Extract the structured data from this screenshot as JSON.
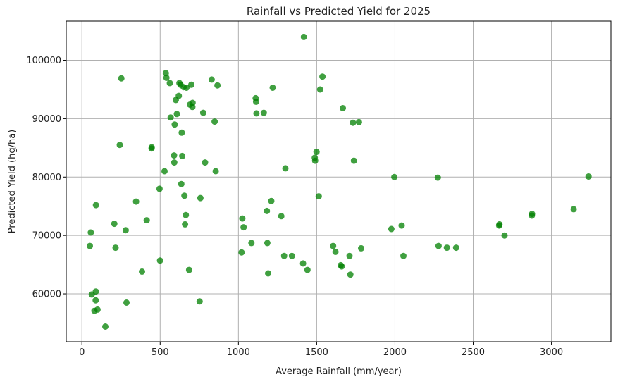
{
  "chart_data": {
    "type": "scatter",
    "title": "Rainfall vs Predicted Yield for 2025",
    "xlabel": "Average Rainfall (mm/year)",
    "ylabel": "Predicted Yield (hg/ha)",
    "xlim": [
      -100,
      3380
    ],
    "ylim": [
      51800,
      106700
    ],
    "xticks": [
      0,
      500,
      1000,
      1500,
      2000,
      2500,
      3000
    ],
    "yticks": [
      60000,
      70000,
      80000,
      90000,
      100000
    ],
    "grid": true,
    "marker_color": "#008000",
    "series": [
      {
        "points": [
          [
            51,
            68200
          ],
          [
            57,
            70500
          ],
          [
            63,
            59900
          ],
          [
            80,
            57100
          ],
          [
            88,
            58900
          ],
          [
            89,
            60400
          ],
          [
            90,
            75200
          ],
          [
            100,
            57300
          ],
          [
            150,
            54400
          ],
          [
            207,
            72000
          ],
          [
            215,
            67900
          ],
          [
            242,
            85500
          ],
          [
            252,
            96900
          ],
          [
            280,
            70900
          ],
          [
            285,
            58500
          ],
          [
            346,
            75800
          ],
          [
            384,
            63800
          ],
          [
            414,
            72600
          ],
          [
            445,
            84900
          ],
          [
            446,
            85100
          ],
          [
            496,
            78000
          ],
          [
            499,
            65700
          ],
          [
            528,
            81000
          ],
          [
            536,
            97800
          ],
          [
            540,
            97000
          ],
          [
            562,
            96100
          ],
          [
            567,
            90200
          ],
          [
            589,
            83700
          ],
          [
            590,
            82500
          ],
          [
            593,
            89000
          ],
          [
            600,
            93200
          ],
          [
            607,
            90800
          ],
          [
            619,
            93900
          ],
          [
            623,
            96100
          ],
          [
            630,
            95800
          ],
          [
            635,
            78800
          ],
          [
            638,
            87600
          ],
          [
            641,
            83600
          ],
          [
            650,
            95400
          ],
          [
            655,
            76800
          ],
          [
            659,
            71900
          ],
          [
            664,
            73500
          ],
          [
            668,
            95300
          ],
          [
            685,
            64100
          ],
          [
            690,
            92400
          ],
          [
            699,
            95800
          ],
          [
            706,
            92000
          ],
          [
            707,
            92700
          ],
          [
            752,
            58700
          ],
          [
            757,
            76400
          ],
          [
            775,
            91000
          ],
          [
            787,
            82500
          ],
          [
            829,
            96700
          ],
          [
            848,
            89500
          ],
          [
            855,
            81000
          ],
          [
            866,
            95700
          ],
          [
            1020,
            67100
          ],
          [
            1025,
            72900
          ],
          [
            1033,
            71400
          ],
          [
            1083,
            68700
          ],
          [
            1110,
            93500
          ],
          [
            1113,
            92900
          ],
          [
            1115,
            90900
          ],
          [
            1162,
            91000
          ],
          [
            1182,
            74200
          ],
          [
            1185,
            68700
          ],
          [
            1190,
            63500
          ],
          [
            1210,
            75900
          ],
          [
            1219,
            95300
          ],
          [
            1274,
            73300
          ],
          [
            1292,
            66500
          ],
          [
            1300,
            81500
          ],
          [
            1342,
            66500
          ],
          [
            1413,
            65200
          ],
          [
            1418,
            104000
          ],
          [
            1441,
            64100
          ],
          [
            1488,
            83300
          ],
          [
            1490,
            82800
          ],
          [
            1499,
            84300
          ],
          [
            1513,
            76700
          ],
          [
            1522,
            95000
          ],
          [
            1537,
            97200
          ],
          [
            1605,
            68200
          ],
          [
            1620,
            67200
          ],
          [
            1654,
            64900
          ],
          [
            1660,
            64700
          ],
          [
            1667,
            91800
          ],
          [
            1710,
            66500
          ],
          [
            1715,
            63300
          ],
          [
            1732,
            89300
          ],
          [
            1738,
            82800
          ],
          [
            1770,
            89400
          ],
          [
            1784,
            67800
          ],
          [
            1977,
            71100
          ],
          [
            1996,
            80000
          ],
          [
            2043,
            71700
          ],
          [
            2054,
            66500
          ],
          [
            2274,
            79900
          ],
          [
            2279,
            68200
          ],
          [
            2332,
            67900
          ],
          [
            2391,
            67900
          ],
          [
            2666,
            71700
          ],
          [
            2668,
            71900
          ],
          [
            2700,
            70000
          ],
          [
            2875,
            73400
          ],
          [
            2876,
            73700
          ],
          [
            3142,
            74500
          ],
          [
            3237,
            80100
          ]
        ]
      }
    ]
  }
}
